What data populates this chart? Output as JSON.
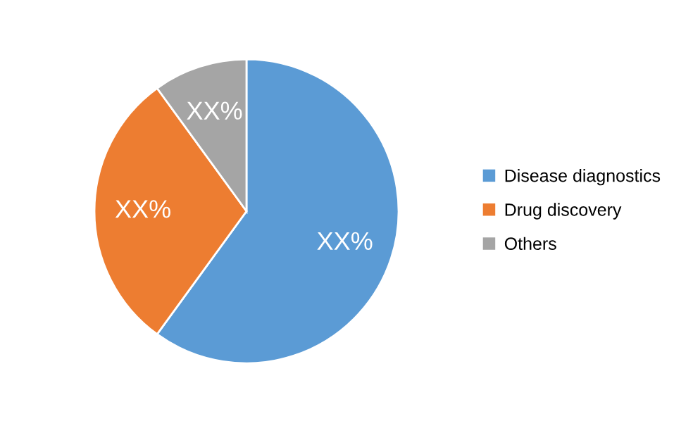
{
  "chart_data": {
    "type": "pie",
    "categories": [
      "Disease diagnostics",
      "Drug discovery",
      "Others"
    ],
    "values": [
      60,
      30,
      10
    ],
    "value_labels": [
      "XX%",
      "XX%",
      "XX%"
    ],
    "colors": [
      "#5b9bd5",
      "#ed7d31",
      "#a5a5a5"
    ],
    "legend": "right"
  }
}
